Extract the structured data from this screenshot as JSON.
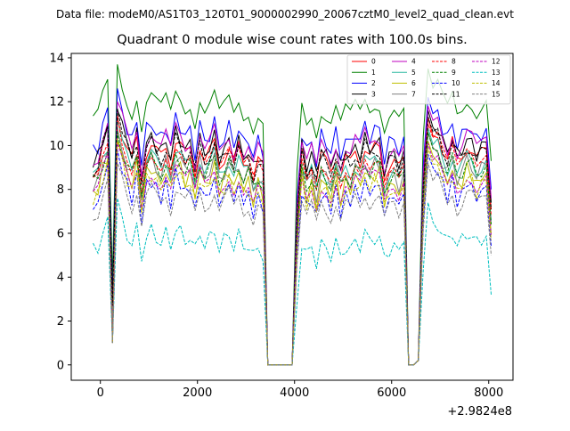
{
  "chart_data": {
    "type": "line",
    "suptitle": "Data file: modeM0/AS1T03_120T01_9000002990_20067cztM0_level2_quad_clean.evt",
    "title": "Quadrant 0 module wise count rates with 100.0s bins.",
    "xlabel": "",
    "ylabel": "",
    "x_offset_label": "+2.9824e8",
    "xlim": [
      -600,
      8500
    ],
    "ylim": [
      -0.7,
      14.2
    ],
    "xticks": [
      0,
      2000,
      4000,
      6000,
      8000
    ],
    "xtick_labels": [
      "0",
      "2000",
      "4000",
      "6000",
      "8000"
    ],
    "yticks": [
      0,
      2,
      4,
      6,
      8,
      10,
      12,
      14
    ],
    "ytick_labels": [
      "0",
      "2",
      "4",
      "6",
      "8",
      "10",
      "12",
      "14"
    ],
    "grid": false,
    "legend_position": "top-right",
    "legend_columns": 4,
    "x": [
      -150,
      -50,
      50,
      150,
      250,
      350,
      450,
      550,
      650,
      750,
      850,
      950,
      1050,
      1150,
      1250,
      1350,
      1450,
      1550,
      1650,
      1750,
      1850,
      1950,
      2050,
      2150,
      2250,
      2350,
      2450,
      2550,
      2650,
      2750,
      2850,
      2950,
      3050,
      3150,
      3250,
      3350,
      3450,
      3550,
      3650,
      3750,
      3850,
      3950,
      4050,
      4150,
      4250,
      4350,
      4450,
      4550,
      4650,
      4750,
      4850,
      4950,
      5050,
      5150,
      5250,
      5350,
      5450,
      5550,
      5650,
      5750,
      5850,
      5950,
      6050,
      6150,
      6250,
      6350,
      6450,
      6550,
      6650,
      6750,
      6850,
      6950,
      7050,
      7150,
      7250,
      7350,
      7450,
      7550,
      7650,
      7750,
      7850,
      7950,
      8050
    ],
    "series": [
      {
        "name": "0",
        "color": "#ff0000",
        "dash": "solid",
        "base": 9.7
      },
      {
        "name": "1",
        "color": "#008000",
        "dash": "solid",
        "base": 11.9
      },
      {
        "name": "2",
        "color": "#0000ff",
        "dash": "solid",
        "base": 10.6
      },
      {
        "name": "3",
        "color": "#000000",
        "dash": "solid",
        "base": 10.0
      },
      {
        "name": "4",
        "color": "#bf00bf",
        "dash": "solid",
        "base": 10.2
      },
      {
        "name": "5",
        "color": "#2ab8a0",
        "dash": "solid",
        "base": 9.2
      },
      {
        "name": "6",
        "color": "#bfbf00",
        "dash": "solid",
        "base": 8.6
      },
      {
        "name": "7",
        "color": "#808080",
        "dash": "solid",
        "base": 9.0
      },
      {
        "name": "8",
        "color": "#ff0000",
        "dash": "dashed",
        "base": 9.4
      },
      {
        "name": "9",
        "color": "#008000",
        "dash": "dashed",
        "base": 9.0
      },
      {
        "name": "10",
        "color": "#0000ff",
        "dash": "dashed",
        "base": 8.0
      },
      {
        "name": "11",
        "color": "#000000",
        "dash": "dashed",
        "base": 9.7
      },
      {
        "name": "12",
        "color": "#bf00bf",
        "dash": "dashed",
        "base": 8.5
      },
      {
        "name": "13",
        "color": "#00bfbf",
        "dash": "dashed",
        "base": 5.8
      },
      {
        "name": "14",
        "color": "#bfbf00",
        "dash": "dashed",
        "base": 8.3
      },
      {
        "name": "15",
        "color": "#808080",
        "dash": "dashed",
        "base": 7.6
      }
    ]
  }
}
